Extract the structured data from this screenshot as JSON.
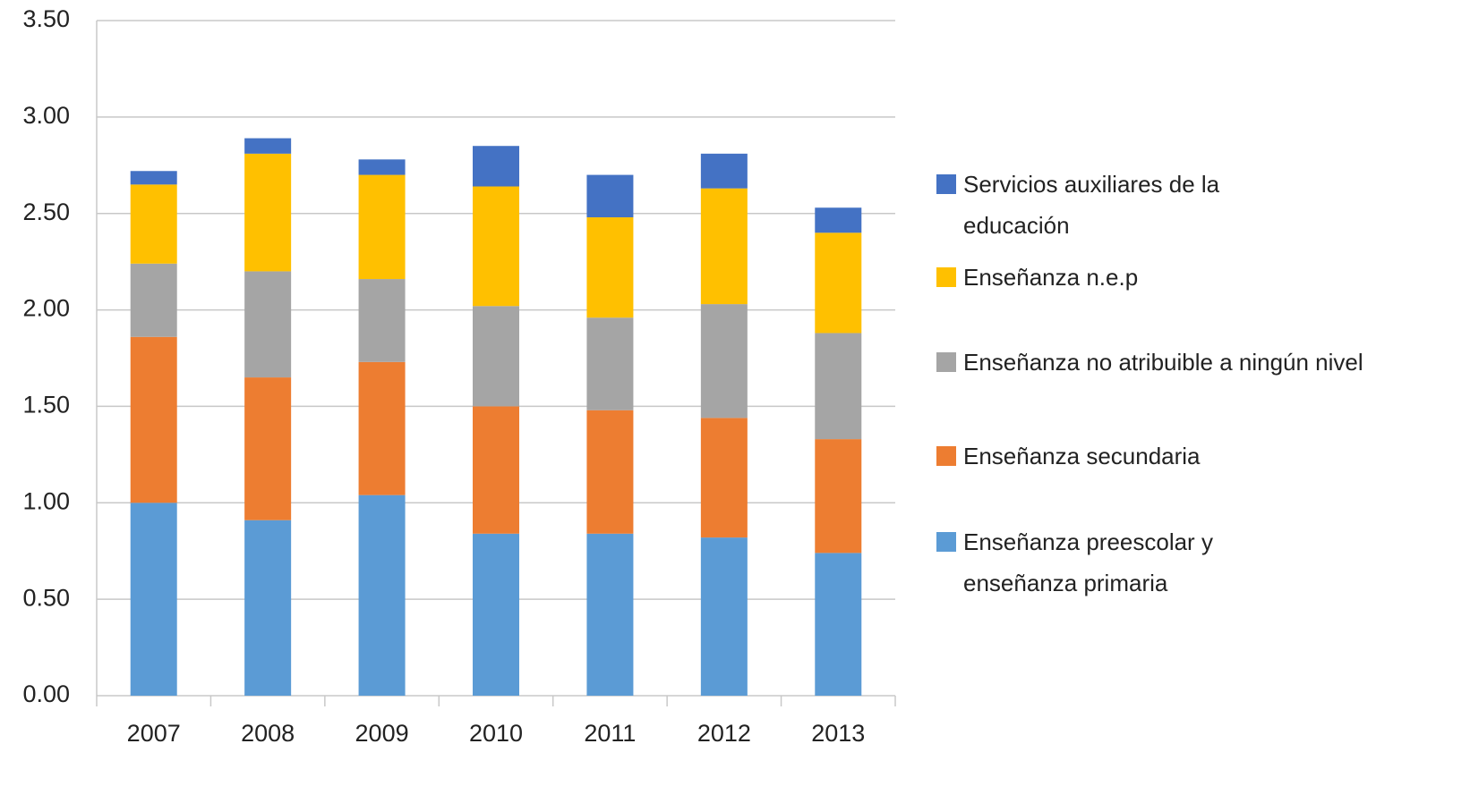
{
  "chart_data": {
    "type": "stacked_bar",
    "categories": [
      "2007",
      "2008",
      "2009",
      "2010",
      "2011",
      "2012",
      "2013"
    ],
    "series": [
      {
        "name": "Enseñanza preescolar y enseñanza primaria",
        "color": "#5b9bd5",
        "values": [
          1.0,
          0.91,
          1.04,
          0.84,
          0.84,
          0.82,
          0.74
        ]
      },
      {
        "name": "Enseñanza secundaria",
        "color": "#ed7d31",
        "values": [
          0.86,
          0.74,
          0.69,
          0.66,
          0.64,
          0.62,
          0.59
        ]
      },
      {
        "name": "Enseñanza no atribuible a ningún nivel",
        "color": "#a5a5a5",
        "values": [
          0.38,
          0.55,
          0.43,
          0.52,
          0.48,
          0.59,
          0.55
        ]
      },
      {
        "name": "Enseñanza n.e.p",
        "color": "#ffc000",
        "values": [
          0.41,
          0.61,
          0.54,
          0.62,
          0.52,
          0.6,
          0.52
        ]
      },
      {
        "name": "Servicios auxiliares de la educación",
        "color": "#4472c4",
        "values": [
          0.07,
          0.08,
          0.08,
          0.21,
          0.22,
          0.18,
          0.13
        ]
      }
    ],
    "ylim": [
      0,
      3.5
    ],
    "yticks": [
      {
        "value": 0,
        "label": "0.00"
      },
      {
        "value": 0.5,
        "label": "0.50"
      },
      {
        "value": 1,
        "label": "1.00"
      },
      {
        "value": 1.5,
        "label": "1.50"
      },
      {
        "value": 2,
        "label": "2.00"
      },
      {
        "value": 2.5,
        "label": "2.50"
      },
      {
        "value": 3,
        "label": "3.00"
      },
      {
        "value": 3.5,
        "label": "3.50"
      }
    ],
    "grid": true,
    "legend": "right"
  }
}
